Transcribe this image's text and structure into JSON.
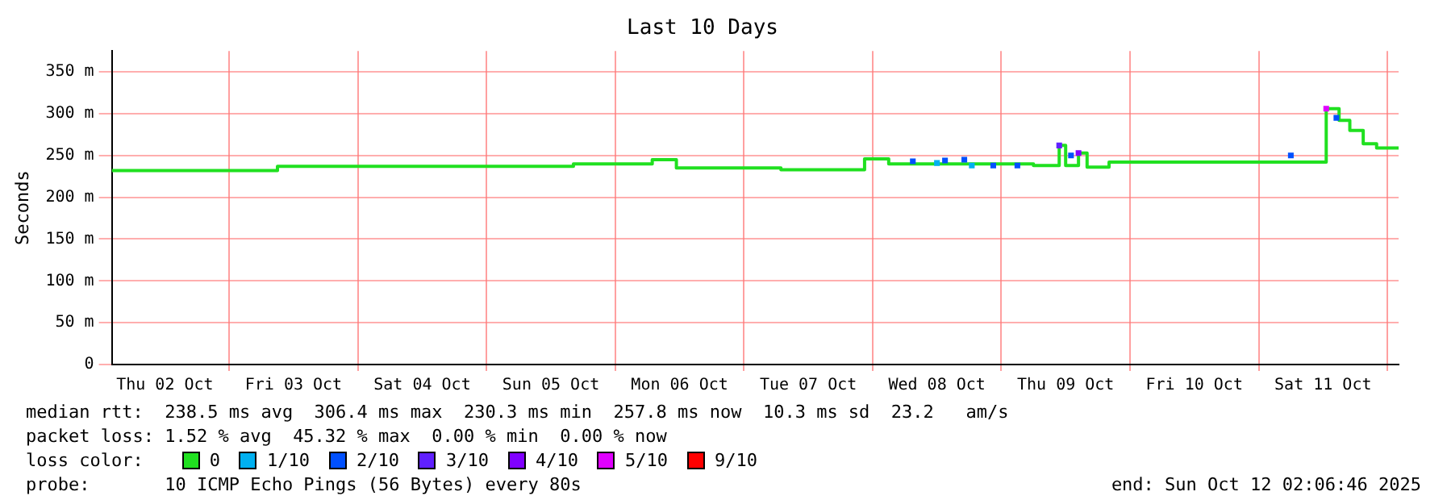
{
  "chart_data": {
    "type": "step",
    "title": "Last 10 Days",
    "ylabel": "Seconds",
    "legend_title": "loss color:",
    "legend": "bottom",
    "grid": true,
    "xlim": [
      "2025-10-02T02:06",
      "2025-10-12T02:06"
    ],
    "xticks": [
      {
        "value": "2025-10-02T12:00",
        "label": "Thu 02 Oct"
      },
      {
        "value": "2025-10-03T00:00",
        "label": null
      },
      {
        "value": "2025-10-03T12:00",
        "label": "Fri 03 Oct"
      },
      {
        "value": "2025-10-04T00:00",
        "label": null
      },
      {
        "value": "2025-10-04T12:00",
        "label": "Sat 04 Oct"
      },
      {
        "value": "2025-10-05T00:00",
        "label": null
      },
      {
        "value": "2025-10-05T12:00",
        "label": "Sun 05 Oct"
      },
      {
        "value": "2025-10-06T00:00",
        "label": null
      },
      {
        "value": "2025-10-06T12:00",
        "label": "Mon 06 Oct"
      },
      {
        "value": "2025-10-07T00:00",
        "label": null
      },
      {
        "value": "2025-10-07T12:00",
        "label": "Tue 07 Oct"
      },
      {
        "value": "2025-10-08T00:00",
        "label": null
      },
      {
        "value": "2025-10-08T12:00",
        "label": "Wed 08 Oct"
      },
      {
        "value": "2025-10-09T00:00",
        "label": null
      },
      {
        "value": "2025-10-09T12:00",
        "label": "Thu 09 Oct"
      },
      {
        "value": "2025-10-10T00:00",
        "label": null
      },
      {
        "value": "2025-10-10T12:00",
        "label": "Fri 10 Oct"
      },
      {
        "value": "2025-10-11T00:00",
        "label": null
      },
      {
        "value": "2025-10-11T12:00",
        "label": "Sat 11 Oct"
      },
      {
        "value": "2025-10-12T00:00",
        "label": null
      }
    ],
    "ylim": [
      0,
      375
    ],
    "yticks": [
      0,
      {
        "value": 50,
        "label": "50 m"
      },
      {
        "value": 100,
        "label": "100 m"
      },
      {
        "value": 150,
        "label": "150 m"
      },
      {
        "value": 200,
        "label": "200 m"
      },
      {
        "value": 250,
        "label": "250 m"
      },
      {
        "value": 300,
        "label": "300 m"
      },
      {
        "value": 350,
        "label": "350 m"
      }
    ],
    "series": [
      {
        "name": "0",
        "color": "#20e020",
        "marker": "none",
        "x": [
          "2025-10-02T02:06",
          "2025-10-03T09:00",
          "2025-10-05T16:12",
          "2025-10-06T06:54",
          "2025-10-06T11:24",
          "2025-10-07T06:54",
          "2025-10-07T17:24",
          "2025-10-07T22:30",
          "2025-10-08T03:00",
          "2025-10-09T06:00",
          "2025-10-09T10:48",
          "2025-10-09T12:00",
          "2025-10-09T14:24",
          "2025-10-09T16:00",
          "2025-10-09T20:06",
          "2025-10-11T11:24",
          "2025-10-11T12:36",
          "2025-10-11T15:00",
          "2025-10-11T17:00",
          "2025-10-11T19:30",
          "2025-10-11T22:00",
          "2025-10-12T02:06"
        ],
        "values": [
          232,
          237,
          240,
          245,
          235,
          233,
          233,
          246,
          240,
          238,
          262,
          238,
          253,
          236,
          242,
          242,
          306,
          292,
          280,
          264,
          259,
          259
        ]
      },
      {
        "name": "1/10",
        "color": "#00b0f0",
        "type": "scatter",
        "marker": "square",
        "x": [
          "2025-10-08T12:00",
          "2025-10-08T18:30"
        ],
        "values": [
          241,
          238
        ]
      },
      {
        "name": "2/10",
        "color": "#0050ff",
        "type": "scatter",
        "marker": "square",
        "x": [
          "2025-10-08T07:30",
          "2025-10-08T13:30",
          "2025-10-08T17:06",
          "2025-10-08T22:30",
          "2025-10-09T03:00",
          "2025-10-09T13:00",
          "2025-10-11T06:00",
          "2025-10-11T14:30"
        ],
        "values": [
          243,
          244,
          245,
          238,
          238,
          250,
          250,
          295
        ]
      },
      {
        "name": "3/10",
        "color": "#6020ff",
        "type": "scatter",
        "marker": "square",
        "x": [
          "2025-10-09T10:48"
        ],
        "values": [
          262
        ]
      },
      {
        "name": "4/10",
        "color": "#8000ff",
        "type": "scatter",
        "marker": "square",
        "x": [
          "2025-10-09T14:24"
        ],
        "values": [
          253
        ]
      },
      {
        "name": "5/10",
        "color": "#e000ff",
        "type": "scatter",
        "marker": "square",
        "x": [
          "2025-10-11T12:36"
        ],
        "values": [
          306
        ]
      },
      {
        "name": "9/10",
        "color": "#ff0000",
        "type": "scatter",
        "marker": "square"
      }
    ],
    "annotations": [
      "median rtt:  238.5 ms avg  306.4 ms max  230.3 ms min  257.8 ms now  10.3 ms sd  23.2   am/s",
      "packet loss: 1.52 % avg  45.32 % max  0.00 % min  0.00 % now",
      "probe:       10 ICMP Echo Pings (56 Bytes) every 80s",
      "end: Sun Oct 12 02:06:46 2025"
    ]
  }
}
